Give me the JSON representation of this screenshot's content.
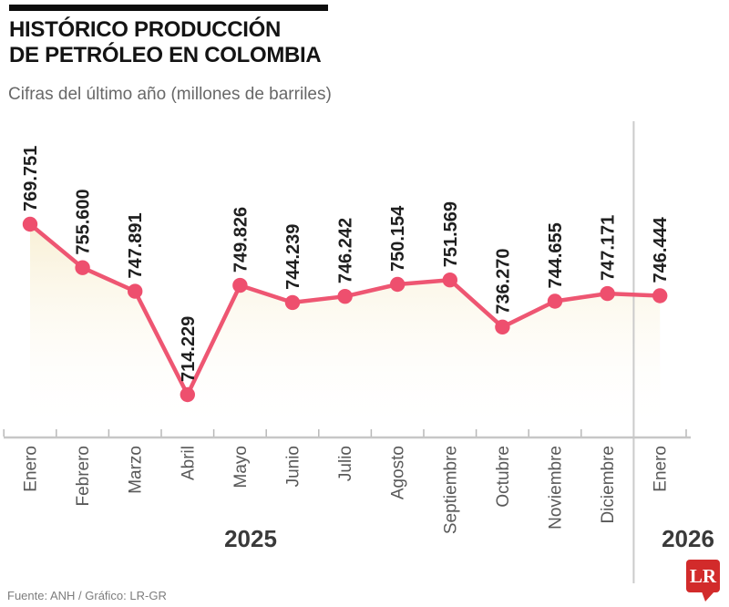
{
  "header": {
    "title_line1": "HISTÓRICO PRODUCCIÓN",
    "title_line2": "DE PETRÓLEO EN COLOMBIA",
    "subtitle": "Cifras del último año (millones de barriles)"
  },
  "chart_data": {
    "type": "line",
    "title": "Histórico producción de petróleo en Colombia",
    "subtitle": "Cifras del último año (millones de barriles)",
    "unit": "millones de barriles",
    "categories": [
      "Enero",
      "Febrero",
      "Marzo",
      "Abril",
      "Mayo",
      "Junio",
      "Julio",
      "Agosto",
      "Septiembre",
      "Octubre",
      "Noviembre",
      "Diciembre",
      "Enero"
    ],
    "values": [
      769.751,
      755.6,
      747.891,
      714.229,
      749.826,
      744.239,
      746.242,
      750.154,
      751.569,
      736.27,
      744.655,
      747.171,
      746.444
    ],
    "value_labels": [
      "769.751",
      "755.600",
      "747.891",
      "714.229",
      "749.826",
      "744.239",
      "746.242",
      "750.154",
      "751.569",
      "736.270",
      "744.655",
      "747.171",
      "746.444"
    ],
    "year_labels": [
      "2025",
      "2026"
    ],
    "year_split_after_index": 11,
    "ylim": [
      714.229,
      769.751
    ],
    "grid": false,
    "legend": false,
    "colors": {
      "line": "#ee5672",
      "point": "#ee4f6e",
      "area_top": "#f8efd3",
      "axis": "#c7c7c7",
      "tick": "#b8b8b8",
      "divider": "#cbcbcb",
      "value_text": "#1f1f1f",
      "month_text": "#595959",
      "year_text": "#3a3a3a"
    }
  },
  "footer": {
    "source": "Fuente: ANH / Gráfico: LR-GR",
    "logo_text": "LR",
    "logo_color": "#d22b2b"
  }
}
